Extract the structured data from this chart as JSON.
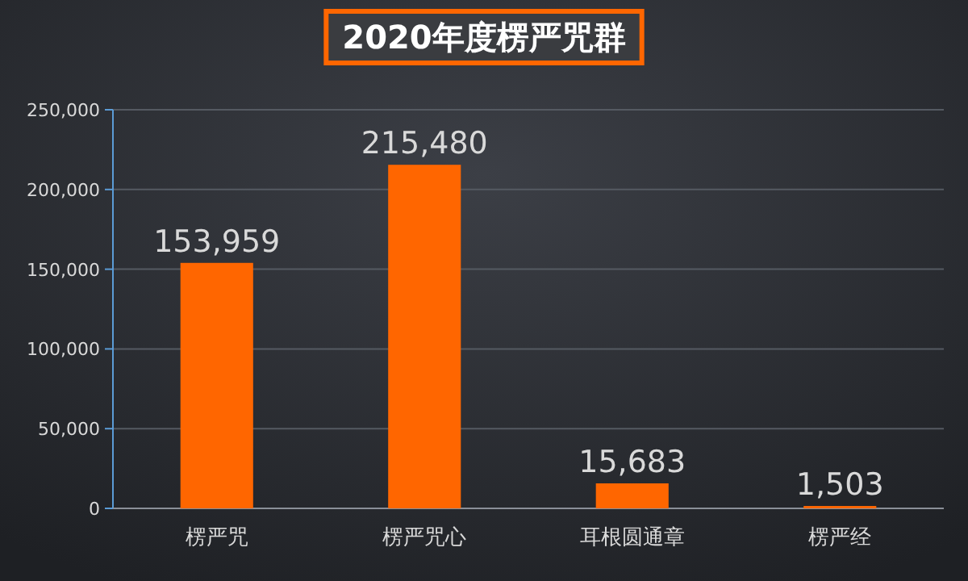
{
  "chart_data": {
    "type": "bar",
    "title": "2020年度楞严咒群",
    "categories": [
      "楞严咒",
      "楞严咒心",
      "耳根圆通章",
      "楞严经"
    ],
    "values": [
      153959,
      215480,
      15683,
      1503
    ],
    "value_labels": [
      "153,959",
      "215,480",
      "15,683",
      "1,503"
    ],
    "color": "#ff6600",
    "ylim": [
      0,
      250000
    ],
    "yticks": [
      {
        "value": 0,
        "label": "0"
      },
      {
        "value": 50000,
        "label": "50,000"
      },
      {
        "value": 100000,
        "label": "100,000"
      },
      {
        "value": 150000,
        "label": "150,000"
      },
      {
        "value": 200000,
        "label": "200,000"
      },
      {
        "value": 250000,
        "label": "250,000"
      }
    ],
    "grid": "y"
  }
}
